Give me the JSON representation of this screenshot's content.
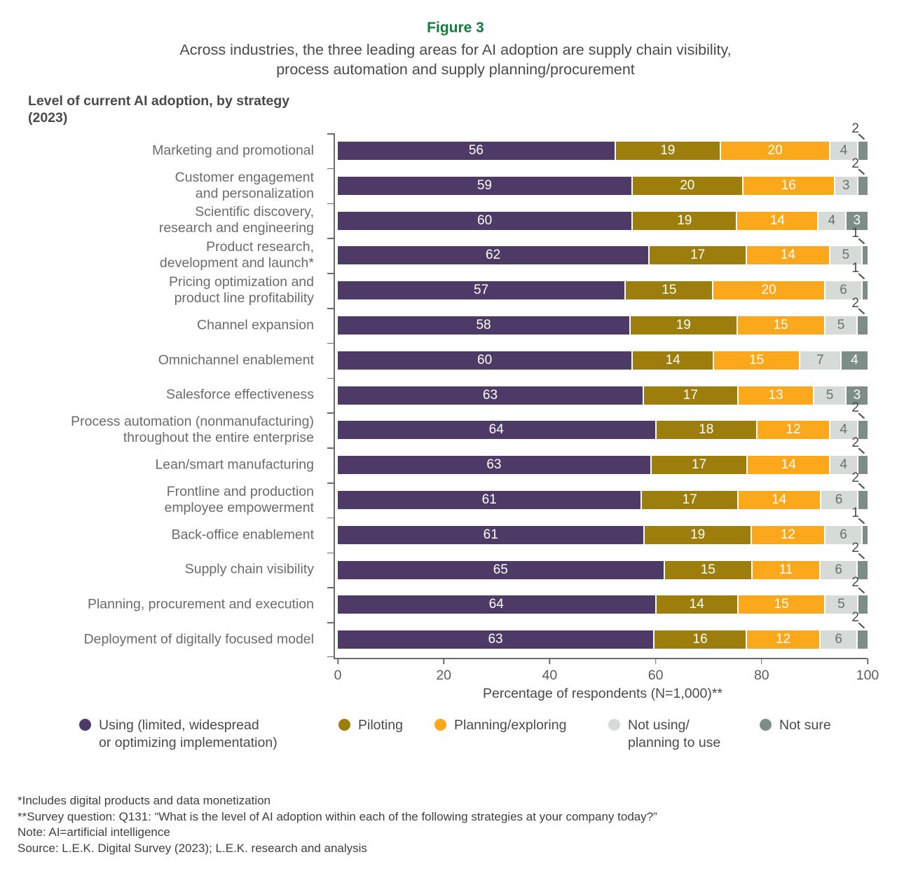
{
  "figure": {
    "label": "Figure 3",
    "title": "Across industries, the three leading areas for AI adoption are supply chain visibility,\nprocess automation and supply planning/procurement",
    "heading": "Level of current AI adoption, by strategy\n(2023)"
  },
  "colors": {
    "figure_label_green": "#137b3e",
    "axis_gray": "#6b6b6b",
    "callout_gray": "#4a4a4a"
  },
  "chart_data": {
    "type": "bar",
    "orientation": "horizontal",
    "stacked": true,
    "grid": false,
    "legend_position": "bottom",
    "xlabel": "Percentage of respondents (N=1,000)**",
    "xlim": [
      0,
      100
    ],
    "xticks": [
      0,
      20,
      40,
      60,
      80,
      100
    ],
    "categories": [
      "Marketing and promotional",
      "Customer engagement\nand personalization",
      "Scientific discovery,\nresearch and engineering",
      "Product research,\ndevelopment and launch*",
      "Pricing optimization and\nproduct line profitability",
      "Channel expansion",
      "Omnichannel enablement",
      "Salesforce effectiveness",
      "Process automation (nonmanufacturing)\nthroughout the entire enterprise",
      "Lean/smart manufacturing",
      "Frontline and production\nemployee empowerment",
      "Back-office enablement",
      "Supply chain visibility",
      "Planning, procurement and execution",
      "Deployment of digitally focused model"
    ],
    "series": [
      {
        "name": "Using (limited, widespread\nor optimizing implementation)",
        "color": "#4e3a67",
        "label_color": "#ffffff",
        "values": [
          56,
          59,
          60,
          62,
          57,
          58,
          60,
          63,
          64,
          63,
          61,
          61,
          65,
          64,
          63
        ]
      },
      {
        "name": "Piloting",
        "color": "#9d7d0c",
        "label_color": "#ffffff",
        "values": [
          19,
          20,
          19,
          17,
          15,
          19,
          14,
          17,
          18,
          17,
          17,
          19,
          15,
          14,
          16
        ]
      },
      {
        "name": "Planning/exploring",
        "color": "#fba81c",
        "label_color": "#ffffff",
        "values": [
          20,
          16,
          14,
          14,
          20,
          15,
          15,
          13,
          12,
          14,
          14,
          12,
          11,
          15,
          12
        ]
      },
      {
        "name": "Not using/\nplanning to use",
        "color": "#d6dbd7",
        "label_color": "#66736e",
        "values": [
          4,
          3,
          4,
          5,
          6,
          5,
          7,
          5,
          4,
          4,
          6,
          6,
          6,
          5,
          6
        ]
      },
      {
        "name": "Not sure",
        "color": "#7d8e88",
        "label_color": "#ffffff",
        "values": [
          2,
          2,
          3,
          1,
          1,
          2,
          4,
          3,
          2,
          2,
          2,
          1,
          2,
          2,
          2
        ]
      }
    ]
  },
  "footnotes": [
    "*Includes digital products and data monetization",
    "**Survey question: Q131: “What is the level of AI adoption within each of the following strategies at your company today?”",
    "Note: AI=artificial intelligence",
    "Source: L.E.K. Digital Survey (2023); L.E.K. research and analysis"
  ]
}
